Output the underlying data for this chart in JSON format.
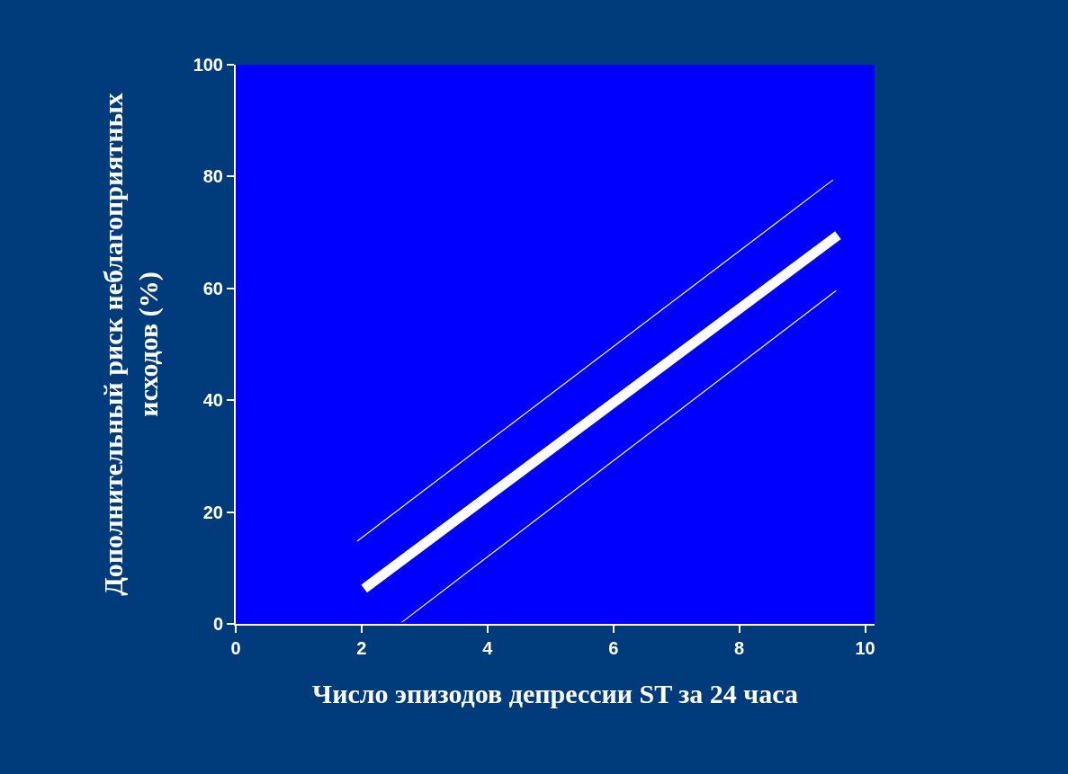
{
  "chart_data": {
    "type": "line",
    "xlabel": "Число эпизодов депрессии ST за 24 часа",
    "ylabel": "Дополнительный риск неблагоприятных исходов (%)",
    "xlim": [
      0,
      10.15
    ],
    "xticks": [
      0,
      2,
      4,
      6,
      8,
      10
    ],
    "ylim": [
      0,
      100
    ],
    "yticks": [
      0,
      20,
      40,
      60,
      80,
      100
    ],
    "marker": "none",
    "line_style": "solid",
    "series": [
      {
        "color": "#ffffff",
        "x": [
          2.04,
          9.57
        ],
        "values": [
          6.3,
          69.5
        ]
      },
      {
        "color": "#ffffff",
        "x": [
          1.93,
          9.49
        ],
        "values": [
          14.8,
          79.4
        ]
      },
      {
        "color": "#ffffff",
        "x": [
          2.64,
          9.54
        ],
        "values": [
          0.3,
          59.6
        ]
      }
    ]
  }
}
